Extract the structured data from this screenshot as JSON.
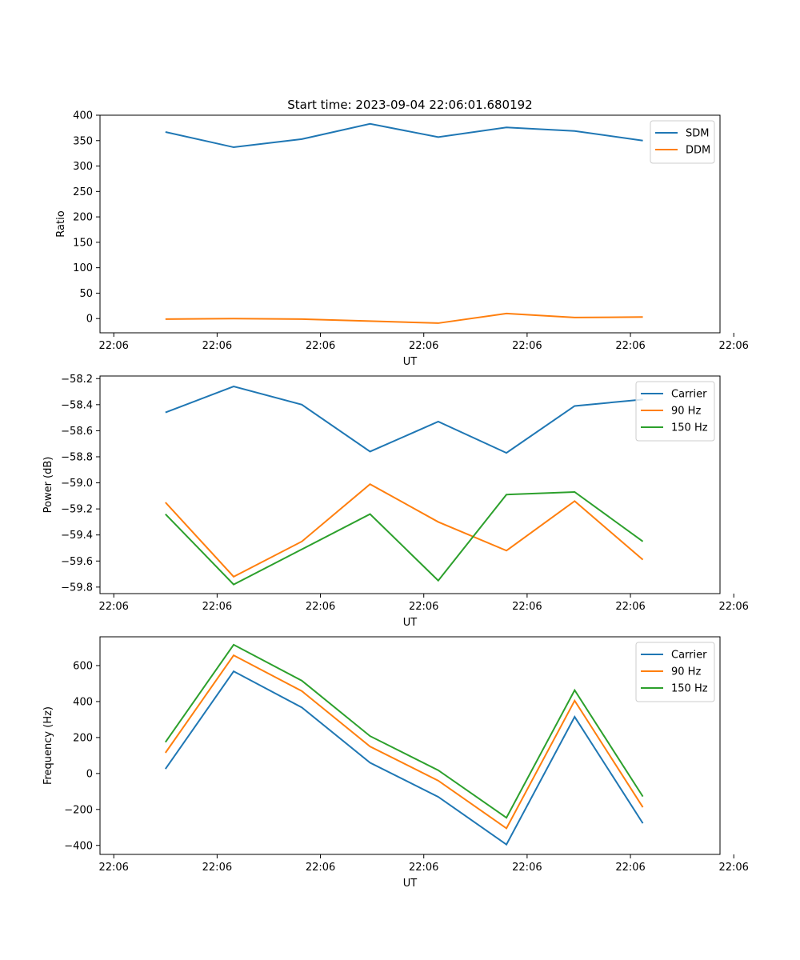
{
  "title": "Start time: 2023-09-04 22:06:01.680192",
  "chart_data": [
    {
      "type": "line",
      "xlabel": "UT",
      "ylabel": "Ratio",
      "xlim": [
        -0.2,
        8.8
      ],
      "ylim": [
        -28,
        400
      ],
      "yticks": [
        0,
        50,
        100,
        150,
        200,
        250,
        300,
        350,
        400
      ],
      "ytick_labels": [
        "0",
        "50",
        "100",
        "150",
        "200",
        "250",
        "300",
        "350",
        "400"
      ],
      "xticks": [
        0,
        1.5,
        3,
        4.5,
        6,
        7.5,
        9
      ],
      "xtick_labels": [
        "22:06",
        "22:06",
        "22:06",
        "22:06",
        "22:06",
        "22:06",
        "22:06"
      ],
      "x": [
        0.75,
        1.74,
        2.73,
        3.72,
        4.71,
        5.7,
        6.69,
        7.68
      ],
      "legend_position": "top-right",
      "series": [
        {
          "name": "SDM",
          "color": "#1f77b4",
          "values": [
            367,
            337,
            353,
            383,
            357,
            376,
            369,
            350
          ]
        },
        {
          "name": "DDM",
          "color": "#ff7f0e",
          "values": [
            -1,
            0,
            -1,
            -5,
            -9,
            10,
            2,
            3
          ]
        }
      ]
    },
    {
      "type": "line",
      "xlabel": "UT",
      "ylabel": "Power (dB)",
      "xlim": [
        -0.2,
        8.8
      ],
      "ylim": [
        -59.85,
        -58.18
      ],
      "yticks": [
        -59.8,
        -59.6,
        -59.4,
        -59.2,
        -59.0,
        -58.8,
        -58.6,
        -58.4,
        -58.2
      ],
      "ytick_labels": [
        "−59.8",
        "−59.6",
        "−59.4",
        "−59.2",
        "−59.0",
        "−58.8",
        "−58.6",
        "−58.4",
        "−58.2"
      ],
      "xticks": [
        0,
        1.5,
        3,
        4.5,
        6,
        7.5,
        9
      ],
      "xtick_labels": [
        "22:06",
        "22:06",
        "22:06",
        "22:06",
        "22:06",
        "22:06",
        "22:06"
      ],
      "x": [
        0.75,
        1.74,
        2.73,
        3.72,
        4.71,
        5.7,
        6.69,
        7.68
      ],
      "legend_position": "top-right",
      "series": [
        {
          "name": "Carrier",
          "color": "#1f77b4",
          "values": [
            -58.46,
            -58.26,
            -58.4,
            -58.76,
            -58.53,
            -58.77,
            -58.41,
            -58.36
          ]
        },
        {
          "name": "90 Hz",
          "color": "#ff7f0e",
          "values": [
            -59.15,
            -59.72,
            -59.45,
            -59.01,
            -59.3,
            -59.52,
            -59.14,
            -59.59
          ]
        },
        {
          "name": "150 Hz",
          "color": "#2ca02c",
          "values": [
            -59.24,
            -59.78,
            -59.51,
            -59.24,
            -59.75,
            -59.09,
            -59.07,
            -59.45
          ]
        }
      ]
    },
    {
      "type": "line",
      "xlabel": "UT",
      "ylabel": "Frequency (Hz)",
      "xlim": [
        -0.2,
        8.8
      ],
      "ylim": [
        -450,
        760
      ],
      "yticks": [
        -400,
        -200,
        0,
        200,
        400,
        600
      ],
      "ytick_labels": [
        "−400",
        "−200",
        "0",
        "200",
        "400",
        "600"
      ],
      "xticks": [
        0,
        1.5,
        3,
        4.5,
        6,
        7.5,
        9
      ],
      "xtick_labels": [
        "22:06",
        "22:06",
        "22:06",
        "22:06",
        "22:06",
        "22:06",
        "22:06"
      ],
      "x": [
        0.75,
        1.74,
        2.73,
        3.72,
        4.71,
        5.7,
        6.69,
        7.68
      ],
      "legend_position": "top-right",
      "series": [
        {
          "name": "Carrier",
          "color": "#1f77b4",
          "values": [
            25,
            568,
            367,
            60,
            -130,
            -395,
            315,
            -277
          ]
        },
        {
          "name": "90 Hz",
          "color": "#ff7f0e",
          "values": [
            115,
            657,
            458,
            150,
            -40,
            -305,
            405,
            -188
          ]
        },
        {
          "name": "150 Hz",
          "color": "#2ca02c",
          "values": [
            174,
            716,
            516,
            208,
            18,
            -246,
            463,
            -128
          ]
        }
      ]
    }
  ]
}
